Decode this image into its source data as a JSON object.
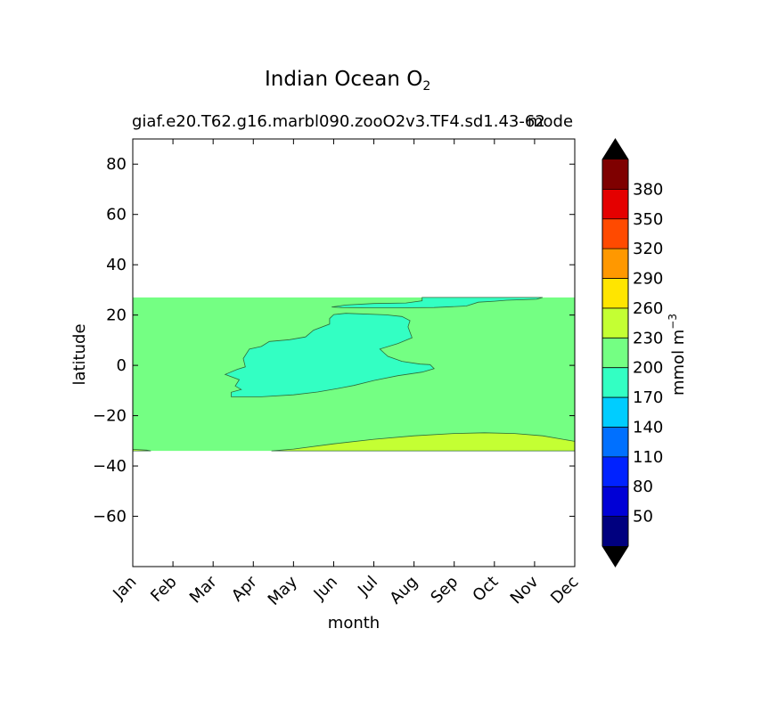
{
  "chart_data": {
    "type": "contourf",
    "title": "Indian Ocean O",
    "title_subscript": "2",
    "subtitle_left": "giaf.e20.T62.g16.marbl090.zooO2v3.TF4.sd1.43-62",
    "subtitle_right": "mode",
    "xlabel": "month",
    "ylabel": "latitude",
    "x_ticks": [
      "Jan",
      "Feb",
      "Mar",
      "Apr",
      "May",
      "Jun",
      "Jul",
      "Aug",
      "Sep",
      "Oct",
      "Nov",
      "Dec"
    ],
    "x_range": [
      1,
      12
    ],
    "y_range": [
      -80,
      90
    ],
    "y_ticks": [
      80,
      60,
      40,
      20,
      0,
      -20,
      -40,
      -60
    ],
    "y_tick_labels": [
      "80",
      "60",
      "40",
      "20",
      "0",
      "−20",
      "−40",
      "−60"
    ],
    "data_lat_range": [
      -34,
      27
    ],
    "colorbar": {
      "label": "mmol m",
      "label_superscript": "−3",
      "levels": [
        20,
        50,
        80,
        110,
        140,
        170,
        200,
        230,
        260,
        290,
        320,
        350,
        380,
        410
      ],
      "tick_labels": [
        "50",
        "80",
        "110",
        "140",
        "170",
        "200",
        "230",
        "260",
        "290",
        "320",
        "350",
        "380"
      ],
      "colors": [
        "#00007f",
        "#0000d6",
        "#0022ff",
        "#0070ff",
        "#00cdff",
        "#33ffc3",
        "#74ff83",
        "#c4ff33",
        "#ffe500",
        "#ff9800",
        "#ff4a00",
        "#e40000",
        "#7f0000"
      ],
      "under_color": "#000000",
      "over_color": "#000000",
      "extend": "both"
    },
    "regions": [
      {
        "name": "background",
        "level_range": [
          200,
          230
        ],
        "color": "#74ff83",
        "polygon": [
          [
            1,
            27
          ],
          [
            12,
            27
          ],
          [
            12,
            -34
          ],
          [
            1,
            -34
          ]
        ]
      },
      {
        "name": "south-band",
        "level_range": [
          230,
          260
        ],
        "color": "#c4ff33",
        "polygon": [
          [
            4.45,
            -34
          ],
          [
            5,
            -33.3
          ],
          [
            6,
            -31.2
          ],
          [
            7,
            -29.4
          ],
          [
            8,
            -28
          ],
          [
            9,
            -27.1
          ],
          [
            9.75,
            -26.8
          ],
          [
            10.5,
            -27.1
          ],
          [
            11.2,
            -28
          ],
          [
            12,
            -30.2
          ],
          [
            12,
            -34
          ]
        ]
      },
      {
        "name": "south-band-west-edge",
        "level_range": [
          230,
          260
        ],
        "color": "#c4ff33",
        "polygon": [
          [
            1,
            -34
          ],
          [
            1,
            -33.4
          ],
          [
            1.35,
            -33.7
          ],
          [
            1.45,
            -34
          ]
        ]
      },
      {
        "name": "central-low",
        "level_range": [
          170,
          200
        ],
        "color": "#33ffc3",
        "polygon": [
          [
            3.45,
            -12.5
          ],
          [
            4.2,
            -12.5
          ],
          [
            5,
            -11.7
          ],
          [
            5.6,
            -10.6
          ],
          [
            6.1,
            -9.2
          ],
          [
            6.5,
            -8
          ],
          [
            7,
            -6
          ],
          [
            7.6,
            -4.1
          ],
          [
            8.2,
            -2.7
          ],
          [
            8.5,
            -1.3
          ],
          [
            8.4,
            0.3
          ],
          [
            8.15,
            0.5
          ],
          [
            7.7,
            1.6
          ],
          [
            7.35,
            3.6
          ],
          [
            7.25,
            5
          ],
          [
            7.15,
            6.5
          ],
          [
            7.6,
            8.7
          ],
          [
            7.95,
            11
          ],
          [
            7.85,
            15.3
          ],
          [
            7.9,
            17.8
          ],
          [
            7.7,
            19.4
          ],
          [
            7.3,
            20.1
          ],
          [
            6.3,
            20.7
          ],
          [
            6,
            20.2
          ],
          [
            5.9,
            18.6
          ],
          [
            5.9,
            16.4
          ],
          [
            5.5,
            14
          ],
          [
            5.3,
            11.3
          ],
          [
            4.9,
            10.2
          ],
          [
            4.4,
            9.5
          ],
          [
            4.2,
            7.5
          ],
          [
            3.9,
            6.5
          ],
          [
            3.75,
            2.7
          ],
          [
            3.8,
            -0.6
          ],
          [
            3.6,
            -1.6
          ],
          [
            3.3,
            -3.6
          ],
          [
            3.65,
            -5.7
          ],
          [
            3.55,
            -8.2
          ],
          [
            3.7,
            -9.6
          ],
          [
            3.45,
            -10.7
          ]
        ]
      },
      {
        "name": "north-low",
        "level_range": [
          170,
          200
        ],
        "color": "#33ffc3",
        "polygon": [
          [
            5.95,
            23.2
          ],
          [
            6.3,
            24
          ],
          [
            7,
            24.6
          ],
          [
            7.8,
            24.8
          ],
          [
            8.2,
            25.7
          ],
          [
            8.2,
            27
          ],
          [
            11.2,
            27
          ],
          [
            11.05,
            26.3
          ],
          [
            10.3,
            25.9
          ],
          [
            10,
            25.5
          ],
          [
            9.6,
            25.1
          ],
          [
            9.3,
            23.6
          ],
          [
            8.5,
            23
          ],
          [
            7.6,
            22.9
          ],
          [
            6.9,
            22.9
          ],
          [
            6.2,
            23
          ],
          [
            5.95,
            23.2
          ]
        ]
      }
    ]
  }
}
